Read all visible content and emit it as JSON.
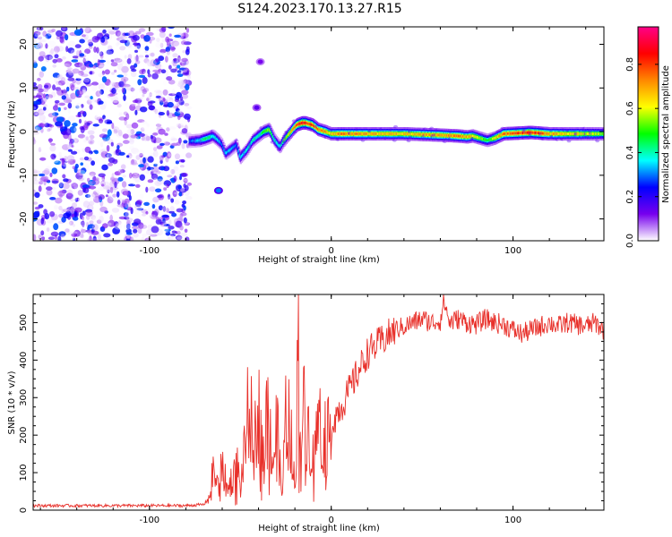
{
  "figure_title": "S124.2023.170.13.27.R15",
  "chart_data": [
    {
      "type": "heatmap",
      "xlabel": "Height of straight line (km)",
      "ylabel": "Frequency (Hz)",
      "xlim": [
        -164,
        150
      ],
      "ylim": [
        -25,
        24
      ],
      "xticks": [
        -100,
        0,
        100
      ],
      "yticks": [
        -20,
        -10,
        0,
        10,
        20
      ],
      "colorbar": {
        "label": "Normalized spectral amplitude",
        "range": [
          0,
          0.97
        ],
        "ticks": [
          "0.0",
          "0.2",
          "0.4",
          "0.6",
          "0.8"
        ],
        "colors": [
          "#ffffff",
          "#7700ee",
          "#0000ff",
          "#00ffff",
          "#00ff00",
          "#ffff00",
          "#ff8800",
          "#ff0000",
          "#ff0088"
        ]
      },
      "noise_region": {
        "x": [
          -164,
          -78
        ],
        "amplitude": [
          0.0,
          0.3
        ]
      },
      "ridge": {
        "x": [
          -78,
          -72,
          -68,
          -65,
          -62,
          -60,
          -58,
          -55,
          -52,
          -50,
          -46,
          -43,
          -40,
          -37,
          -34,
          -31,
          -28,
          -26,
          -22,
          -19,
          -16,
          -14,
          -10,
          -7,
          -3,
          0,
          5,
          20,
          40,
          60,
          70,
          75,
          78,
          82,
          86,
          90,
          95,
          110,
          120,
          130,
          140,
          150
        ],
        "freq": [
          -2.2,
          -2,
          -1.5,
          -1,
          -2,
          -3,
          -5,
          -4,
          -3,
          -6,
          -4,
          -2,
          -1,
          0,
          0.5,
          -2,
          -3.5,
          -2,
          0,
          1.5,
          2,
          2,
          1.5,
          0.5,
          0,
          -0.5,
          -0.5,
          -0.5,
          -0.5,
          -0.8,
          -1,
          -1.2,
          -1,
          -1.5,
          -2,
          -1.5,
          -0.5,
          -0.2,
          -0.5,
          -0.5,
          -0.5,
          -0.5
        ],
        "peak": [
          0.3,
          0.4,
          0.5,
          0.4,
          0.4,
          0.3,
          0.4,
          0.35,
          0.3,
          0.4,
          0.4,
          0.45,
          0.45,
          0.55,
          0.6,
          0.45,
          0.4,
          0.55,
          0.7,
          0.85,
          0.95,
          0.9,
          0.85,
          0.8,
          0.75,
          0.7,
          0.8,
          0.75,
          0.7,
          0.75,
          0.8,
          0.75,
          0.7,
          0.6,
          0.5,
          0.65,
          0.8,
          0.9,
          0.75,
          0.7,
          0.65,
          0.6
        ]
      },
      "blobs": [
        {
          "x": -62,
          "freq": -13.5,
          "amplitude": 0.3
        },
        {
          "x": -41,
          "freq": 5.5,
          "amplitude": 0.15
        },
        {
          "x": -39,
          "freq": 16,
          "amplitude": 0.12
        }
      ]
    },
    {
      "type": "line",
      "xlabel": "Height of straight line (km)",
      "ylabel": "SNR (10 * v/v)",
      "xlim": [
        -164,
        150
      ],
      "ylim": [
        0,
        575
      ],
      "xticks": [
        -100,
        0,
        100
      ],
      "yticks": [
        0,
        100,
        200,
        300,
        400,
        500
      ],
      "line_color": "#e8302a",
      "series": [
        {
          "x": [
            -164,
            -120,
            -80,
            -70,
            -67,
            -65,
            -62,
            -60,
            -57,
            -55,
            -52,
            -50,
            -47,
            -45,
            -43,
            -40,
            -37,
            -35,
            -32,
            -30,
            -27,
            -25,
            -22,
            -20,
            -18,
            -17,
            -15,
            -12,
            -10,
            -7,
            -5,
            -2,
            0,
            3,
            6,
            10,
            13,
            16,
            20,
            25,
            30,
            35,
            40,
            45,
            50,
            55,
            60,
            62,
            65,
            70,
            75,
            80,
            85,
            90,
            95,
            100,
            105,
            110,
            115,
            120,
            125,
            130,
            135,
            140,
            145,
            150
          ],
          "y": [
            12,
            12,
            12,
            15,
            35,
            105,
            60,
            120,
            50,
            80,
            130,
            60,
            180,
            320,
            150,
            270,
            140,
            300,
            120,
            230,
            30,
            270,
            200,
            50,
            480,
            250,
            260,
            200,
            140,
            230,
            240,
            190,
            220,
            260,
            280,
            320,
            350,
            380,
            420,
            440,
            460,
            480,
            490,
            500,
            510,
            500,
            505,
            560,
            500,
            510,
            500,
            495,
            510,
            500,
            495,
            480,
            470,
            480,
            490,
            500,
            490,
            500,
            495,
            490,
            500,
            480
          ]
        }
      ]
    }
  ]
}
